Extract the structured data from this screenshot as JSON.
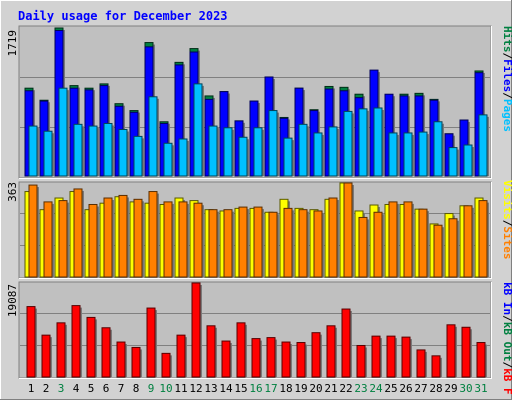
{
  "chart_data": {
    "type": "bar",
    "title": "Daily usage for December 2023",
    "title_color": "#0000ff",
    "background_color": "#d2d2d2",
    "plot_background": "#c0c0c0",
    "days": [
      "1",
      "2",
      "3",
      "4",
      "5",
      "6",
      "7",
      "8",
      "9",
      "10",
      "11",
      "12",
      "13",
      "14",
      "15",
      "16",
      "17",
      "18",
      "19",
      "20",
      "21",
      "22",
      "23",
      "24",
      "25",
      "26",
      "27",
      "28",
      "29",
      "30",
      "31"
    ],
    "weekend_days": [
      "3",
      "9",
      "10",
      "16",
      "17",
      "23",
      "24",
      "30",
      "31"
    ],
    "weekday_label_color": "#000000",
    "weekend_label_color": "#008040",
    "panels": [
      {
        "max_label": "1719",
        "ylim": [
          0,
          1719
        ],
        "series": [
          {
            "name": "Hits",
            "color": "#008040",
            "label_color": "#008040",
            "values": [
              1020,
              880,
              1719,
              1050,
              1020,
              1070,
              840,
              760,
              1550,
              630,
              1320,
              1480,
              930,
              980,
              640,
              870,
              1150,
              680,
              1020,
              770,
              1040,
              1030,
              950,
              1010,
              780,
              950,
              960,
              890,
              490,
              650,
              1220
            ]
          },
          {
            "name": "Files",
            "color": "#0000ff",
            "label_color": "#0000ff",
            "values": [
              990,
              870,
              1690,
              1020,
              1000,
              1050,
              810,
              740,
              1500,
              610,
              1290,
              1440,
              890,
              980,
              640,
              870,
              1150,
              670,
              1020,
              760,
              1010,
              990,
              910,
              1230,
              950,
              930,
              930,
              880,
              490,
              650,
              1200
            ]
          },
          {
            "name": "Pages",
            "color": "#00c0ff",
            "label_color": "#00c0ff",
            "values": [
              580,
              520,
              1020,
              600,
              580,
              610,
              540,
              460,
              920,
              380,
              430,
              1070,
              580,
              560,
              450,
              560,
              760,
              440,
              600,
              500,
              570,
              750,
              780,
              790,
              500,
              500,
              510,
              630,
              330,
              360,
              710
            ]
          }
        ]
      },
      {
        "max_label": "363",
        "ylim": [
          0,
          363
        ],
        "series": [
          {
            "name": "Visits",
            "color": "#ffff00",
            "label_color": "#ffff00",
            "values": [
              330,
              260,
              305,
              330,
              260,
              285,
              310,
              290,
              285,
              280,
              305,
              295,
              260,
              255,
              265,
              265,
              250,
              300,
              265,
              260,
              300,
              363,
              255,
              278,
              280,
              280,
              262,
              205,
              245,
              275,
              305
            ]
          },
          {
            "name": "Sites",
            "color": "#ff8000",
            "label_color": "#ff8000",
            "values": [
              355,
              290,
              295,
              340,
              280,
              305,
              315,
              300,
              330,
              290,
              290,
              285,
              260,
              260,
              270,
              270,
              250,
              265,
              260,
              255,
              305,
              363,
              230,
              250,
              290,
              290,
              262,
              200,
              225,
              275,
              295
            ]
          }
        ]
      },
      {
        "max_label": "19087",
        "ylim": [
          0,
          19087
        ],
        "series": [
          {
            "name": "KBytes In",
            "color": "#0000ff",
            "label_color": "#0000ff",
            "values": []
          },
          {
            "name": "KBytes Out",
            "color": "#008040",
            "label_color": "#008040",
            "values": []
          },
          {
            "name": "KBytes F",
            "color": "#ff0000",
            "label_color": "#ff0000",
            "values": [
              14300,
              8500,
              11000,
              14500,
              12100,
              10000,
              7100,
              6000,
              14000,
              4800,
              8500,
              19087,
              10400,
              7300,
              11000,
              7800,
              8000,
              7100,
              7000,
              9000,
              10400,
              13800,
              6400,
              8300,
              8300,
              8100,
              5500,
              4300,
              10600,
              10100,
              7000
            ]
          }
        ]
      }
    ],
    "side_labels": [
      {
        "parts": [
          {
            "text": "Pages",
            "color": "#00c0ff"
          },
          {
            "text": "/",
            "color": "#000000"
          },
          {
            "text": "Files",
            "color": "#0000ff"
          },
          {
            "text": "/",
            "color": "#000000"
          },
          {
            "text": "Hits",
            "color": "#008040"
          }
        ]
      },
      {
        "parts": [
          {
            "text": "Sites",
            "color": "#ff8000"
          },
          {
            "text": "/",
            "color": "#000000"
          },
          {
            "text": "Visits",
            "color": "#ffff00"
          }
        ]
      },
      {
        "parts": [
          {
            "text": "kB F",
            "color": "#ff0000"
          },
          {
            "text": "/",
            "color": "#000000"
          },
          {
            "text": "kB Out",
            "color": "#008040"
          },
          {
            "text": "/",
            "color": "#000000"
          },
          {
            "text": "kB In",
            "color": "#0000ff"
          }
        ]
      }
    ]
  }
}
